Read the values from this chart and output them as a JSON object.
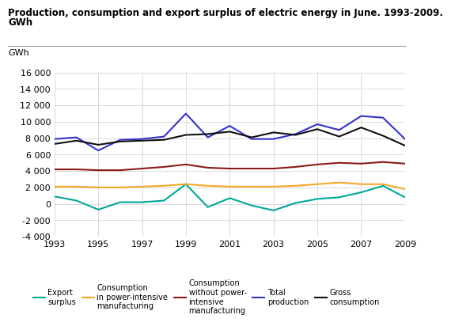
{
  "title_line1": "Production, consumption and export surplus of electric energy in June. 1993-2009.",
  "title_line2": "GWh",
  "ylabel": "GWh",
  "years": [
    1993,
    1994,
    1995,
    1996,
    1997,
    1998,
    1999,
    2000,
    2001,
    2002,
    2003,
    2004,
    2005,
    2006,
    2007,
    2008,
    2009
  ],
  "export_surplus": [
    900,
    400,
    -700,
    200,
    200,
    400,
    2400,
    -400,
    700,
    -200,
    -800,
    100,
    600,
    800,
    1400,
    2200,
    800
  ],
  "consumption_power_intensive": [
    2100,
    2100,
    2000,
    2000,
    2100,
    2200,
    2400,
    2200,
    2100,
    2100,
    2100,
    2200,
    2400,
    2600,
    2400,
    2400,
    1800
  ],
  "consumption_without_power": [
    4200,
    4200,
    4100,
    4100,
    4300,
    4500,
    4800,
    4400,
    4300,
    4300,
    4300,
    4500,
    4800,
    5000,
    4900,
    5100,
    4900
  ],
  "total_production": [
    7900,
    8100,
    6500,
    7800,
    7900,
    8200,
    11000,
    8100,
    9500,
    7900,
    7900,
    8500,
    9700,
    9000,
    10700,
    10500,
    7900
  ],
  "gross_consumption": [
    7300,
    7700,
    7200,
    7600,
    7700,
    7800,
    8400,
    8500,
    8800,
    8100,
    8700,
    8400,
    9100,
    8200,
    9300,
    8300,
    7100
  ],
  "colors": {
    "export_surplus": "#00A896",
    "consumption_power_intensive": "#F4A828",
    "consumption_without_power": "#8B1A1A",
    "total_production": "#3333CC",
    "gross_consumption": "#111111"
  },
  "ylim": [
    -4000,
    16000
  ],
  "yticks": [
    -4000,
    -2000,
    0,
    2000,
    4000,
    6000,
    8000,
    10000,
    12000,
    14000,
    16000
  ],
  "xticks": [
    1993,
    1995,
    1997,
    1999,
    2001,
    2003,
    2005,
    2007,
    2009
  ],
  "legend_labels": [
    "Export\nsurplus",
    "Consumption\nin power-intensive\nmanufacturing",
    "Consumption\nwithout power-\nintensive\nmanufacturing",
    "Total\nproduction",
    "Gross\nconsumption"
  ],
  "linewidth": 1.5,
  "grid_color": "#cccccc",
  "tick_fontsize": 8,
  "ylabel_fontsize": 8,
  "legend_fontsize": 7,
  "title_fontsize": 8.5
}
